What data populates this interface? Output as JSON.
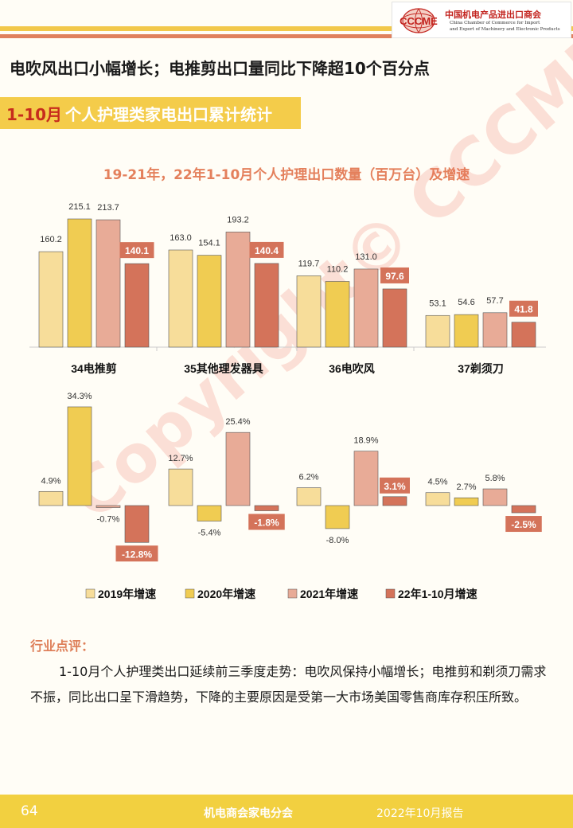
{
  "header": {
    "logo_abbr": "CCCME",
    "org_cn": "中国机电产品进出口商会",
    "org_en_line1": "China Chamber of Commerce for Import",
    "org_en_line2": "and Export of Machinery and Electronic Products"
  },
  "headline": "电吹风出口小幅增长；电推剪出口量同比下降超10个百分点",
  "section": {
    "highlight": "1-10月",
    "title": "个人护理类家电出口累计统计"
  },
  "watermark": "Copyright© CCCME",
  "colors": {
    "y2019": "#f7dd9a",
    "y2020": "#f0cc52",
    "y2021": "#e8ab97",
    "y2022": "#d4735a",
    "accent": "#e4805c"
  },
  "chart_data": [
    {
      "type": "bar",
      "title": "19-21年，22年1-10月个人护理出口数量（百万台）及增速",
      "categories": [
        "34电推剪",
        "35其他理发器具",
        "36电吹风",
        "37剃须刀"
      ],
      "series": [
        {
          "name": "2019",
          "values": [
            160.2,
            163.0,
            119.7,
            53.1
          ]
        },
        {
          "name": "2020",
          "values": [
            215.1,
            154.1,
            110.2,
            54.6
          ]
        },
        {
          "name": "2021",
          "values": [
            213.7,
            193.2,
            131.0,
            57.7
          ]
        },
        {
          "name": "22年1-10月",
          "values": [
            140.1,
            140.4,
            97.6,
            41.8
          ]
        }
      ],
      "labels": [
        [
          "160.2",
          "215.1",
          "213.7",
          "140.1"
        ],
        [
          "163.0",
          "154.1",
          "193.2",
          "140.4"
        ],
        [
          "119.7",
          "110.2",
          "131.0",
          "97.6"
        ],
        [
          "53.1",
          "54.6",
          "57.7",
          "41.8"
        ]
      ],
      "ylim": [
        0,
        230
      ]
    },
    {
      "type": "bar",
      "categories": [
        "34电推剪",
        "35其他理发器具",
        "36电吹风",
        "37剃须刀"
      ],
      "series": [
        {
          "name": "2019年增速",
          "values": [
            4.9,
            12.7,
            6.2,
            4.5
          ]
        },
        {
          "name": "2020年增速",
          "values": [
            34.3,
            -5.4,
            -8.0,
            2.7
          ]
        },
        {
          "name": "2021年增速",
          "values": [
            -0.7,
            25.4,
            18.9,
            5.8
          ]
        },
        {
          "name": "22年1-10月增速",
          "values": [
            -12.8,
            -1.8,
            3.1,
            -2.5
          ]
        }
      ],
      "labels": [
        [
          "4.9%",
          "34.3%",
          "-0.7%",
          "-12.8%"
        ],
        [
          "12.7%",
          "-5.4%",
          "25.4%",
          "-1.8%"
        ],
        [
          "6.2%",
          "-8.0%",
          "18.9%",
          "3.1%"
        ],
        [
          "4.5%",
          "2.7%",
          "5.8%",
          "-2.5%"
        ]
      ],
      "legend": [
        "2019年增速",
        "2020年增速",
        "2021年增速",
        "22年1-10月增速"
      ],
      "legend_position": "bottom",
      "ylim": [
        -14,
        36
      ]
    }
  ],
  "commentary": {
    "heading": "行业点评：",
    "body": "1-10月个人护理类出口延续前三季度走势：电吹风保持小幅增长；电推剪和剃须刀需求不振，同比出口呈下滑趋势，下降的主要原因是受第一大市场美国零售商库存积压所致。"
  },
  "footer": {
    "page": "64",
    "org": "机电商会家电分会",
    "date": "2022年10月报告"
  }
}
